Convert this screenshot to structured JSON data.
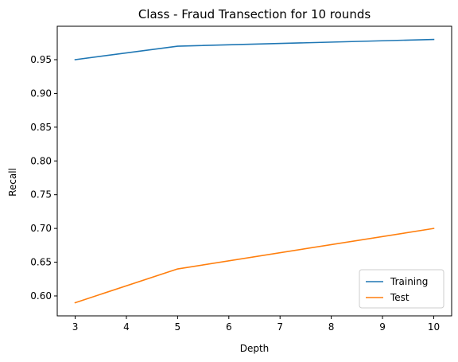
{
  "chart_data": {
    "type": "line",
    "title": "Class - Fraud Transection for 10 rounds",
    "xlabel": "Depth",
    "ylabel": "Recall",
    "x": [
      3,
      5,
      10
    ],
    "series": [
      {
        "name": "Training",
        "values": [
          0.95,
          0.97,
          0.98
        ],
        "color": "#1f77b4"
      },
      {
        "name": "Test",
        "values": [
          0.59,
          0.64,
          0.7
        ],
        "color": "#ff7f0e"
      }
    ],
    "xlim": [
      2.65,
      10.35
    ],
    "ylim": [
      0.5705,
      0.9995
    ],
    "xticks": [
      3,
      4,
      5,
      6,
      7,
      8,
      9,
      10
    ],
    "yticks": [
      0.6,
      0.65,
      0.7,
      0.75,
      0.8,
      0.85,
      0.9,
      0.95
    ],
    "xtick_labels": [
      "3",
      "4",
      "5",
      "6",
      "7",
      "8",
      "9",
      "10"
    ],
    "ytick_labels": [
      "0.60",
      "0.65",
      "0.70",
      "0.75",
      "0.80",
      "0.85",
      "0.90",
      "0.95"
    ],
    "grid": false,
    "legend_position": "lower-right"
  }
}
